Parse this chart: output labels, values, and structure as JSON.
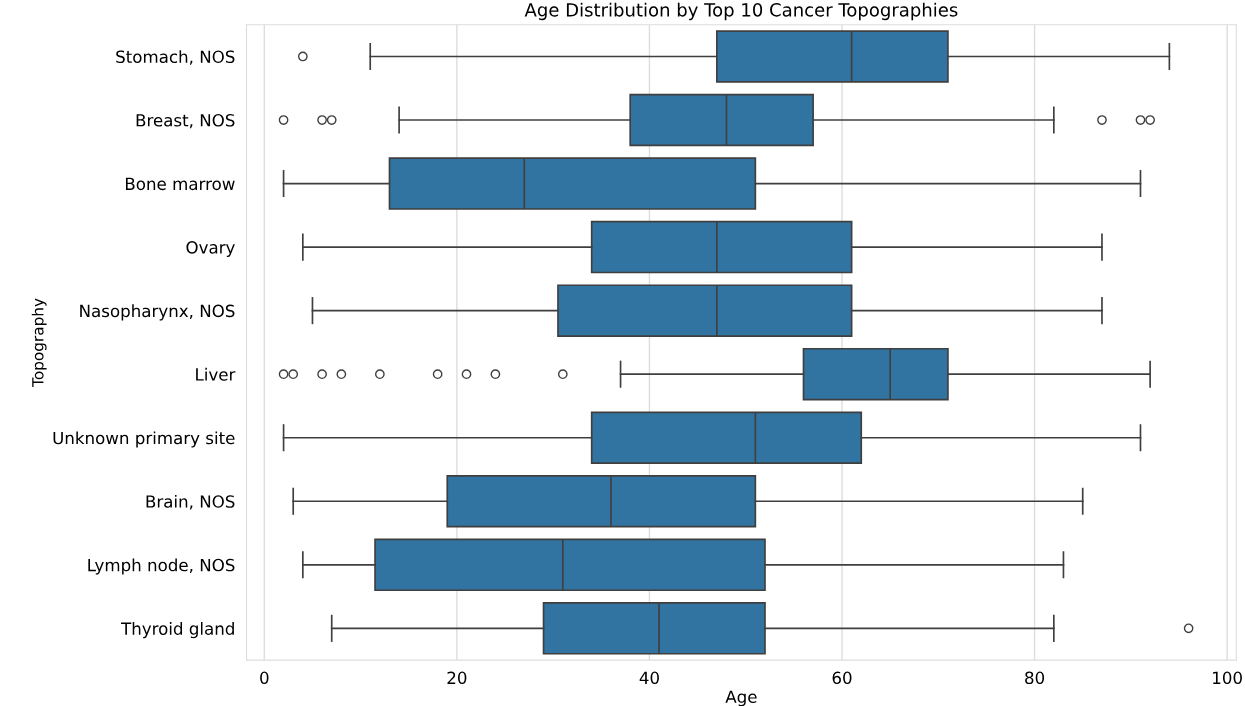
{
  "chart_data": {
    "type": "box",
    "orientation": "horizontal",
    "title": "Age Distribution by Top 10 Cancer Topographies",
    "xlabel": "Age",
    "ylabel": "Topography",
    "color": "#3274a1",
    "categories": [
      "Stomach, NOS",
      "Breast, NOS",
      "Bone marrow",
      "Ovary",
      "Nasopharynx, NOS",
      "Liver",
      "Unknown primary site",
      "Brain, NOS",
      "Lymph node, NOS",
      "Thyroid gland"
    ],
    "boxes": [
      {
        "low": 11,
        "q1": 47,
        "median": 61,
        "q3": 71,
        "high": 94,
        "outliers": [
          4
        ]
      },
      {
        "low": 14,
        "q1": 38,
        "median": 48,
        "q3": 57,
        "high": 82,
        "outliers": [
          2,
          6,
          7,
          87,
          91,
          92
        ]
      },
      {
        "low": 2,
        "q1": 13,
        "median": 27,
        "q3": 51,
        "high": 91
      },
      {
        "low": 4,
        "q1": 34,
        "median": 47,
        "q3": 61,
        "high": 87
      },
      {
        "low": 5,
        "q1": 30.5,
        "median": 47,
        "q3": 61,
        "high": 87
      },
      {
        "low": 37,
        "q1": 56,
        "median": 65,
        "q3": 71,
        "high": 92,
        "outliers": [
          2,
          3,
          6,
          8,
          12,
          18,
          21,
          24,
          31
        ]
      },
      {
        "low": 2,
        "q1": 34,
        "median": 51,
        "q3": 62,
        "high": 91
      },
      {
        "low": 3,
        "q1": 19,
        "median": 36,
        "q3": 51,
        "high": 85
      },
      {
        "low": 4,
        "q1": 11.5,
        "median": 31,
        "q3": 52,
        "high": 83
      },
      {
        "low": 7,
        "q1": 29,
        "median": 41,
        "q3": 52,
        "high": 82,
        "outliers": [
          96
        ]
      }
    ],
    "xlim": [
      -1.85,
      100.95
    ],
    "xticks": [
      0,
      20,
      40,
      60,
      80,
      100
    ],
    "grid": "x"
  }
}
